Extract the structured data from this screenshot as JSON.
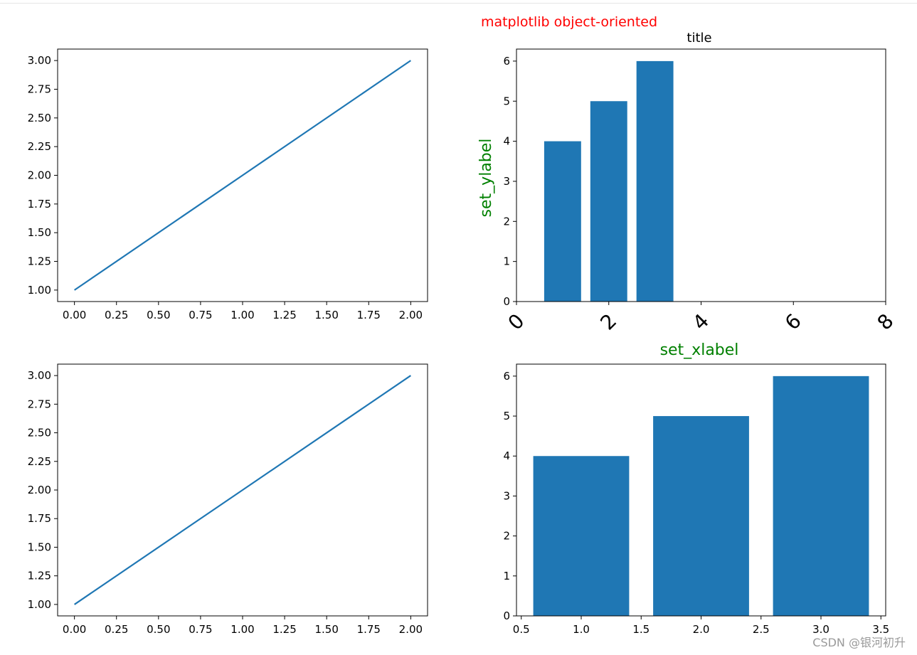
{
  "figure": {
    "suptitle": "matplotlib object-oriented",
    "suptitle_color": "#ff0000",
    "watermark": "CSDN @银河初升"
  },
  "chart_data": [
    {
      "id": "line-top-left",
      "type": "line",
      "x": [
        0,
        1,
        2
      ],
      "y": [
        1,
        2,
        3
      ],
      "xlim": [
        -0.1,
        2.1
      ],
      "ylim": [
        0.9,
        3.1
      ],
      "xticks": [
        0.0,
        0.25,
        0.5,
        0.75,
        1.0,
        1.25,
        1.5,
        1.75,
        2.0
      ],
      "xtick_labels": [
        "0.00",
        "0.25",
        "0.50",
        "0.75",
        "1.00",
        "1.25",
        "1.50",
        "1.75",
        "2.00"
      ],
      "yticks": [
        1.0,
        1.25,
        1.5,
        1.75,
        2.0,
        2.25,
        2.5,
        2.75,
        3.0
      ],
      "ytick_labels": [
        "1.00",
        "1.25",
        "1.50",
        "1.75",
        "2.00",
        "2.25",
        "2.50",
        "2.75",
        "3.00"
      ],
      "color": "#1f77b4",
      "grid": false
    },
    {
      "id": "bar-top-right",
      "type": "bar",
      "x": [
        1,
        2,
        3
      ],
      "values": [
        4,
        5,
        6
      ],
      "bar_width": 0.8,
      "title": "title",
      "ylabel": "set_ylabel",
      "ylabel_color": "#008000",
      "xlim": [
        0,
        8
      ],
      "ylim": [
        0,
        6.3
      ],
      "xticks": [
        0,
        2,
        4,
        6,
        8
      ],
      "xtick_labels": [
        "0",
        "2",
        "4",
        "6",
        "8"
      ],
      "xtick_rotation": -45,
      "yticks": [
        0,
        1,
        2,
        3,
        4,
        5,
        6
      ],
      "ytick_labels": [
        "0",
        "1",
        "2",
        "3",
        "4",
        "5",
        "6"
      ],
      "color": "#1f77b4",
      "grid": false
    },
    {
      "id": "line-bottom-left",
      "type": "line",
      "x": [
        0,
        1,
        2
      ],
      "y": [
        1,
        2,
        3
      ],
      "xlim": [
        -0.1,
        2.1
      ],
      "ylim": [
        0.9,
        3.1
      ],
      "xticks": [
        0.0,
        0.25,
        0.5,
        0.75,
        1.0,
        1.25,
        1.5,
        1.75,
        2.0
      ],
      "xtick_labels": [
        "0.00",
        "0.25",
        "0.50",
        "0.75",
        "1.00",
        "1.25",
        "1.50",
        "1.75",
        "2.00"
      ],
      "yticks": [
        1.0,
        1.25,
        1.5,
        1.75,
        2.0,
        2.25,
        2.5,
        2.75,
        3.0
      ],
      "ytick_labels": [
        "1.00",
        "1.25",
        "1.50",
        "1.75",
        "2.00",
        "2.25",
        "2.50",
        "2.75",
        "3.00"
      ],
      "color": "#1f77b4",
      "grid": false
    },
    {
      "id": "bar-bottom-right",
      "type": "bar",
      "x": [
        1,
        2,
        3
      ],
      "values": [
        4,
        5,
        6
      ],
      "bar_width": 0.8,
      "title": "set_xlabel",
      "title_color": "#008000",
      "xlim": [
        0.46,
        3.54
      ],
      "ylim": [
        0,
        6.3
      ],
      "xticks": [
        0.5,
        1.0,
        1.5,
        2.0,
        2.5,
        3.0,
        3.5
      ],
      "xtick_labels": [
        "0.5",
        "1.0",
        "1.5",
        "2.0",
        "2.5",
        "3.0",
        "3.5"
      ],
      "yticks": [
        0,
        1,
        2,
        3,
        4,
        5,
        6
      ],
      "ytick_labels": [
        "0",
        "1",
        "2",
        "3",
        "4",
        "5",
        "6"
      ],
      "color": "#1f77b4",
      "grid": false
    }
  ]
}
